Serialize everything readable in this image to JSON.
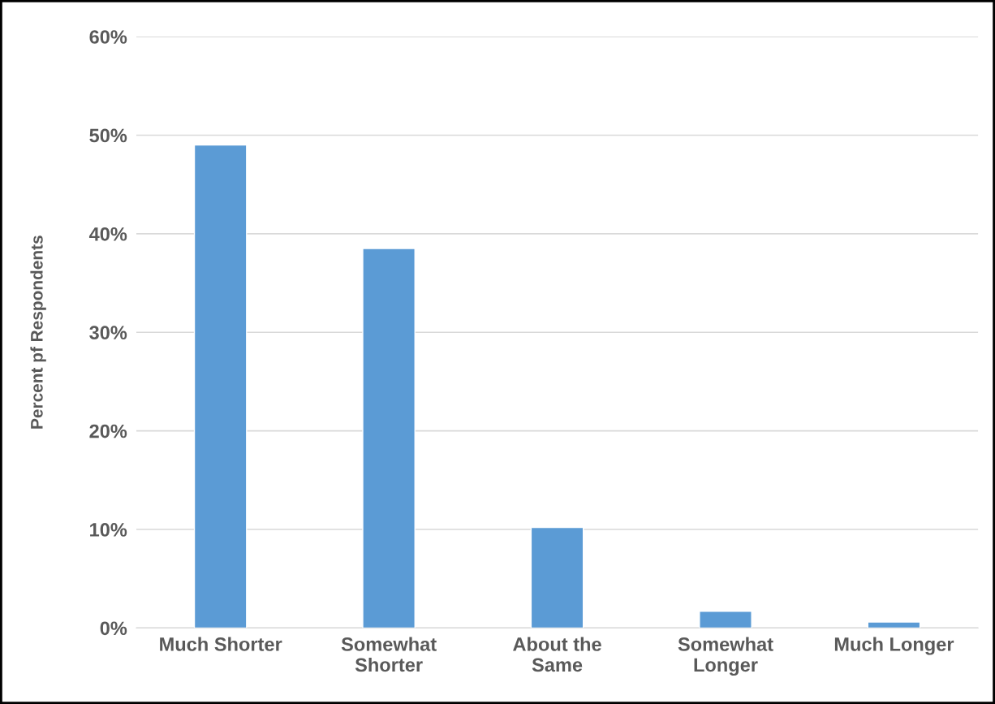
{
  "chart_data": {
    "type": "bar",
    "ylabel": "Percent pf Respondents",
    "categories": [
      "Much Shorter",
      "Somewhat\nShorter",
      "About the\nSame",
      "Somewhat\nLonger",
      "Much Longer"
    ],
    "values": [
      49,
      38.5,
      10.2,
      1.7,
      0.6
    ],
    "color": "#5b9bd5",
    "ylim": [
      0,
      60
    ],
    "yticks": [
      {
        "value": 0,
        "label": "0%"
      },
      {
        "value": 10,
        "label": "10%"
      },
      {
        "value": 20,
        "label": "20%"
      },
      {
        "value": 30,
        "label": "30%"
      },
      {
        "value": 40,
        "label": "40%"
      },
      {
        "value": 50,
        "label": "50%"
      },
      {
        "value": 60,
        "label": "60%"
      }
    ],
    "grid": "y"
  }
}
